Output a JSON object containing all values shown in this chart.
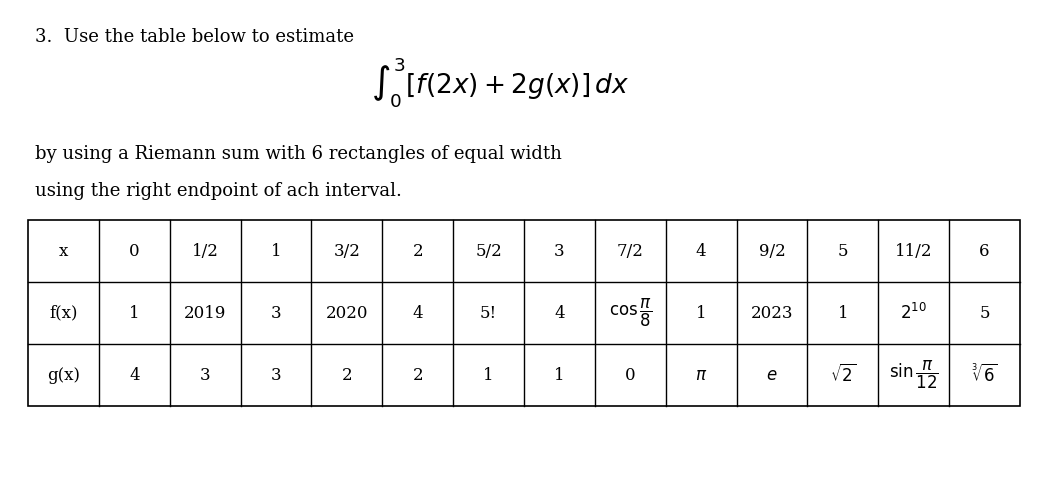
{
  "title_line1": "3.  Use the table below to estimate",
  "integral_text": "$\\int_0^3 [f(2x)+2g(x)]\\,dx$",
  "subtitle_line1": "by using a Riemann sum with 6 rectangles of equal width",
  "subtitle_line2": "using the right endpoint of ach interval.",
  "col_headers": [
    "x",
    "0",
    "1/2",
    "1",
    "3/2",
    "2",
    "5/2",
    "3",
    "7/2",
    "4",
    "9/2",
    "5",
    "11/2",
    "6"
  ],
  "row_fx_label": "f(x)",
  "row_fx": [
    "1",
    "2019",
    "3",
    "2020",
    "4",
    "5!",
    "4",
    "$\\cos\\dfrac{\\pi}{8}$",
    "1",
    "2023",
    "1",
    "$2^{10}$",
    "5"
  ],
  "row_gx_label": "g(x)",
  "row_gx": [
    "4",
    "3",
    "3",
    "2",
    "2",
    "1",
    "1",
    "0",
    "$\\pi$",
    "$e$",
    "$\\sqrt{2}$",
    "$\\sin\\dfrac{\\pi}{12}$",
    "$\\sqrt[3]{6}$"
  ],
  "bg_color": "#ffffff",
  "text_color": "#000000",
  "font_size": 13
}
